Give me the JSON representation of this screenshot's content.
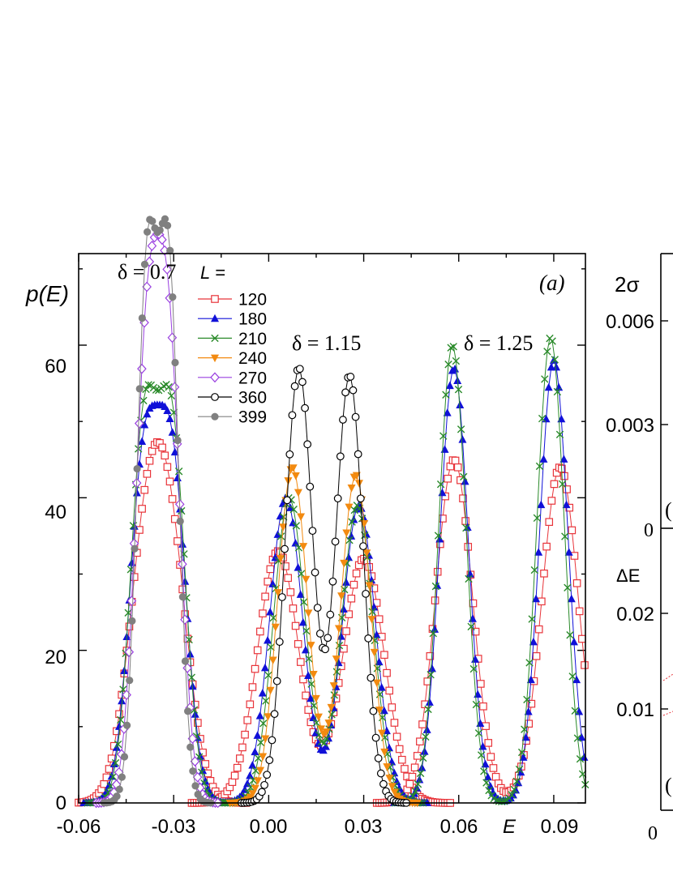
{
  "chart_data": {
    "type": "line",
    "panel_label": "(a)",
    "ylabel": "p(E)",
    "xlabel": "E",
    "xlim": [
      -0.06,
      0.1
    ],
    "ylim": [
      0,
      72
    ],
    "xticks": [
      -0.06,
      -0.03,
      0.0,
      0.03,
      0.06,
      0.09
    ],
    "xtick_labels": [
      "-0.06",
      "-0.03",
      "0.00",
      "0.03",
      "0.06",
      "0.09"
    ],
    "yticks": [
      0,
      20,
      40,
      60
    ],
    "ytick_labels": [
      "0",
      "20",
      "40",
      "60"
    ],
    "legend_title": "L =",
    "legend_position": "top-left",
    "annotations": [
      {
        "text": "δ = 0.7",
        "x": -0.036,
        "y": 73
      },
      {
        "text": "δ = 1.15",
        "x": 0.017,
        "y": 60
      },
      {
        "text": "δ = 1.25",
        "x": 0.07,
        "y": 60
      }
    ],
    "series": [
      {
        "name": "120",
        "color": "#e8343a",
        "marker": "open-square",
        "groups": [
          {
            "delta": "0.7",
            "peaks": [
              {
                "mu": -0.039,
                "sig": 0.0058,
                "amp": 30
              },
              {
                "mu": -0.031,
                "sig": 0.0058,
                "amp": 30
              }
            ]
          },
          {
            "delta": "1.15",
            "peaks": [
              {
                "mu": 0.003,
                "sig": 0.0065,
                "amp": 33
              },
              {
                "mu": 0.03,
                "sig": 0.0065,
                "amp": 32
              }
            ]
          },
          {
            "delta": "1.25",
            "peaks": [
              {
                "mu": 0.0585,
                "sig": 0.0058,
                "amp": 45
              },
              {
                "mu": 0.092,
                "sig": 0.0058,
                "amp": 44
              }
            ]
          }
        ]
      },
      {
        "name": "180",
        "color": "#1010d8",
        "marker": "filled-triangle-up",
        "groups": [
          {
            "delta": "0.7",
            "peaks": [
              {
                "mu": -0.0395,
                "sig": 0.0045,
                "amp": 43
              },
              {
                "mu": -0.0305,
                "sig": 0.0045,
                "amp": 43
              }
            ]
          },
          {
            "delta": "1.15",
            "peaks": [
              {
                "mu": 0.0055,
                "sig": 0.0052,
                "amp": 40
              },
              {
                "mu": 0.0285,
                "sig": 0.0052,
                "amp": 39
              }
            ]
          },
          {
            "delta": "1.25",
            "peaks": [
              {
                "mu": 0.0585,
                "sig": 0.0045,
                "amp": 57
              },
              {
                "mu": 0.09,
                "sig": 0.0045,
                "amp": 58
              }
            ]
          }
        ]
      },
      {
        "name": "210",
        "color": "#2a8a2a",
        "marker": "cross",
        "groups": [
          {
            "delta": "0.7",
            "peaks": [
              {
                "mu": -0.0395,
                "sig": 0.0042,
                "amp": 48
              },
              {
                "mu": -0.0305,
                "sig": 0.0042,
                "amp": 48
              }
            ]
          },
          {
            "delta": "1.15",
            "peaks": [
              {
                "mu": 0.0065,
                "sig": 0.005,
                "amp": 40
              },
              {
                "mu": 0.028,
                "sig": 0.005,
                "amp": 39
              }
            ]
          },
          {
            "delta": "1.25",
            "peaks": [
              {
                "mu": 0.058,
                "sig": 0.0043,
                "amp": 60
              },
              {
                "mu": 0.089,
                "sig": 0.0043,
                "amp": 61
              }
            ]
          }
        ]
      },
      {
        "name": "240",
        "color": "#f28a10",
        "marker": "filled-triangle-down",
        "groups": [
          {
            "delta": "1.15",
            "peaks": [
              {
                "mu": 0.0075,
                "sig": 0.0047,
                "amp": 44
              },
              {
                "mu": 0.0275,
                "sig": 0.0047,
                "amp": 43
              }
            ]
          }
        ]
      },
      {
        "name": "270",
        "color": "#9a40e0",
        "marker": "open-diamond",
        "groups": [
          {
            "delta": "0.7",
            "peaks": [
              {
                "mu": -0.0385,
                "sig": 0.0038,
                "amp": 57
              },
              {
                "mu": -0.0315,
                "sig": 0.0038,
                "amp": 57
              }
            ]
          }
        ]
      },
      {
        "name": "360",
        "color": "#000000",
        "marker": "open-circle",
        "groups": [
          {
            "delta": "1.15",
            "peaks": [
              {
                "mu": 0.0095,
                "sig": 0.0043,
                "amp": 57
              },
              {
                "mu": 0.0255,
                "sig": 0.0043,
                "amp": 56
              }
            ]
          }
        ]
      },
      {
        "name": "399",
        "color": "#808080",
        "marker": "filled-circle",
        "groups": [
          {
            "delta": "0.7",
            "peaks": [
              {
                "mu": -0.0385,
                "sig": 0.0032,
                "amp": 68
              },
              {
                "mu": -0.0315,
                "sig": 0.0032,
                "amp": 68
              }
            ]
          }
        ]
      }
    ]
  },
  "side_panel": {
    "label_top": "2σ",
    "ticks_top": [
      "0.006",
      "0.003",
      "0"
    ],
    "label_bottom": "ΔE",
    "ticks_bottom": [
      "0.02",
      "0.01"
    ],
    "xtick_first": "0",
    "paren_marks": [
      "(",
      "("
    ]
  }
}
